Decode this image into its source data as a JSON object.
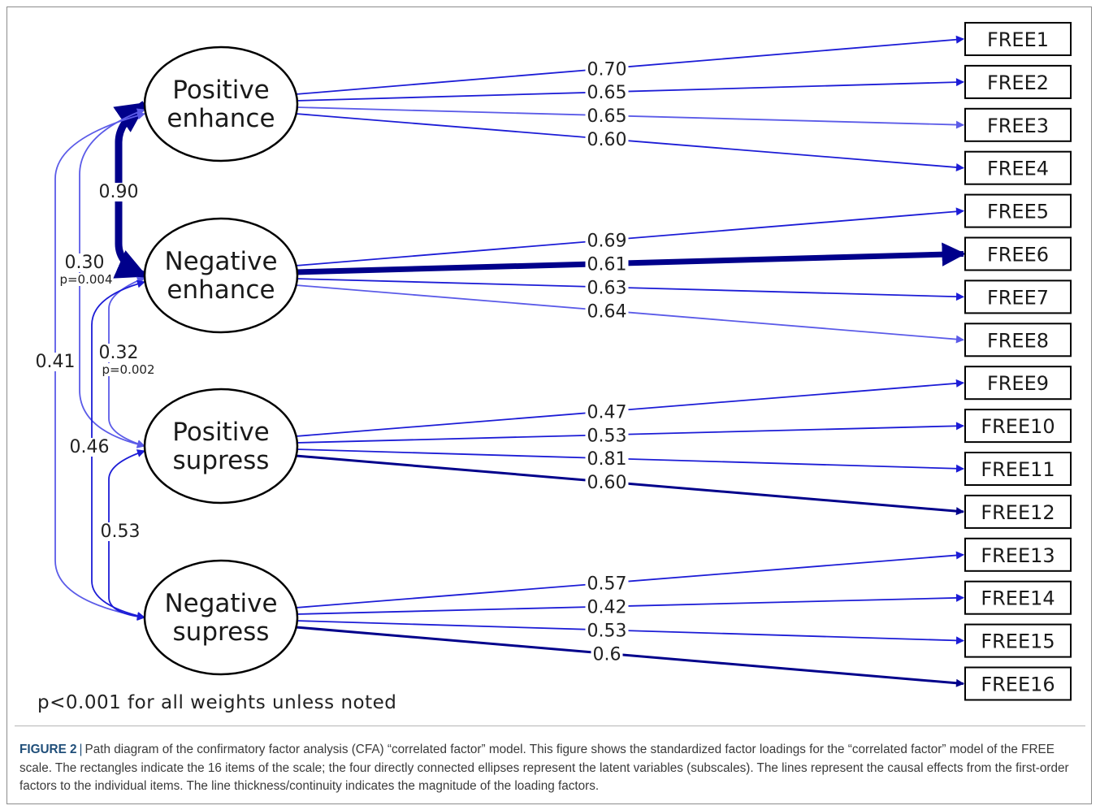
{
  "latents": [
    {
      "id": "PE",
      "lines": [
        "Positive",
        "enhance"
      ]
    },
    {
      "id": "NE",
      "lines": [
        "Negative",
        "enhance"
      ]
    },
    {
      "id": "PS",
      "lines": [
        "Positive",
        "supress"
      ]
    },
    {
      "id": "NS",
      "lines": [
        "Negative",
        "supress"
      ]
    }
  ],
  "items": [
    "FREE1",
    "FREE2",
    "FREE3",
    "FREE4",
    "FREE5",
    "FREE6",
    "FREE7",
    "FREE8",
    "FREE9",
    "FREE10",
    "FREE11",
    "FREE12",
    "FREE13",
    "FREE14",
    "FREE15",
    "FREE16"
  ],
  "loadings": [
    {
      "factor": "PE",
      "item": "FREE1",
      "label": "0.70",
      "value": 0.7
    },
    {
      "factor": "PE",
      "item": "FREE2",
      "label": "0.65",
      "value": 0.65
    },
    {
      "factor": "PE",
      "item": "FREE3",
      "label": "0.65",
      "value": 0.65
    },
    {
      "factor": "PE",
      "item": "FREE4",
      "label": "0.60",
      "value": 0.6
    },
    {
      "factor": "NE",
      "item": "FREE5",
      "label": "0.69",
      "value": 0.69
    },
    {
      "factor": "NE",
      "item": "FREE6",
      "label": "0.61",
      "value": 0.61
    },
    {
      "factor": "NE",
      "item": "FREE7",
      "label": "0.63",
      "value": 0.63
    },
    {
      "factor": "NE",
      "item": "FREE8",
      "label": "0.64",
      "value": 0.64
    },
    {
      "factor": "PS",
      "item": "FREE9",
      "label": "0.47",
      "value": 0.47
    },
    {
      "factor": "PS",
      "item": "FREE10",
      "label": "0.53",
      "value": 0.53
    },
    {
      "factor": "PS",
      "item": "FREE11",
      "label": "0.81",
      "value": 0.81
    },
    {
      "factor": "PS",
      "item": "FREE12",
      "label": "0.60",
      "value": 0.6
    },
    {
      "factor": "NS",
      "item": "FREE13",
      "label": "0.57",
      "value": 0.57
    },
    {
      "factor": "NS",
      "item": "FREE14",
      "label": "0.42",
      "value": 0.42
    },
    {
      "factor": "NS",
      "item": "FREE15",
      "label": "0.53",
      "value": 0.53
    },
    {
      "factor": "NS",
      "item": "FREE16",
      "label": "0.6",
      "value": 0.6
    }
  ],
  "correlations": [
    {
      "from": "PE",
      "to": "NE",
      "label": "0.90",
      "value": 0.9,
      "p": ""
    },
    {
      "from": "PE",
      "to": "PS",
      "label": "0.30",
      "value": 0.3,
      "p": "p=0.004"
    },
    {
      "from": "PE",
      "to": "NS",
      "label": "0.41",
      "value": 0.41,
      "p": ""
    },
    {
      "from": "NE",
      "to": "PS",
      "label": "0.32",
      "value": 0.32,
      "p": "p=0.002"
    },
    {
      "from": "NE",
      "to": "NS",
      "label": "0.46",
      "value": 0.46,
      "p": ""
    },
    {
      "from": "PS",
      "to": "NS",
      "label": "0.53",
      "value": 0.53,
      "p": ""
    }
  ],
  "colors": {
    "dark": "#00008b",
    "medium": "#1c1cd6",
    "light": "#5b5be8"
  },
  "footnote": "p<0.001 for all weights unless noted",
  "caption": {
    "label": "FIGURE 2",
    "separator": "|",
    "text": "Path diagram of the confirmatory factor analysis (CFA) “correlated factor” model. This figure shows the standardized factor loadings for the “correlated factor” model of the FREE scale. The rectangles indicate the 16 items of the scale; the four directly connected ellipses represent the latent variables (subscales). The lines represent the causal effects from the first-order factors to the individual items. The line thickness/continuity indicates the magnitude of the loading factors."
  }
}
